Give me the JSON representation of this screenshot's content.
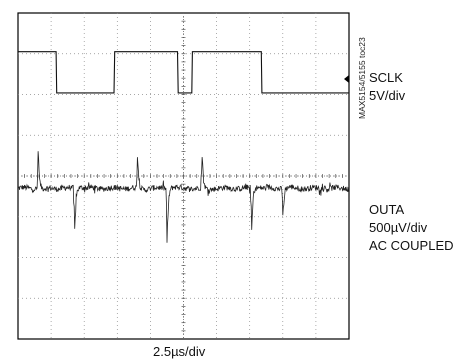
{
  "chart_data": {
    "type": "line",
    "title": "",
    "xlabel": "2.5µs/div",
    "ylabel": "",
    "grid": true,
    "divisions": {
      "x": 10,
      "y": 8
    },
    "x_unit": "div",
    "xlim": [
      0,
      10
    ],
    "series": [
      {
        "name": "SCLK",
        "scale": "5V/div",
        "y_unit": "div",
        "x": [
          0,
          0.07,
          1.15,
          1.17,
          2.9,
          2.92,
          4.82,
          4.84,
          5.25,
          5.27,
          7.35,
          7.37,
          8.0,
          8.02,
          10
        ],
        "y": [
          7.05,
          7.05,
          7.05,
          6.04,
          6.04,
          7.05,
          7.05,
          6.04,
          6.04,
          7.05,
          7.05,
          6.04,
          6.04,
          6.04,
          6.04
        ]
      },
      {
        "name": "OUTA",
        "scale": "500µV/div",
        "coupling": "AC COUPLED",
        "y_unit": "div",
        "baseline": 3.7,
        "spikes": [
          {
            "x": 0.6,
            "amplitude": 1.1
          },
          {
            "x": 1.7,
            "amplitude": -1.35
          },
          {
            "x": 3.6,
            "amplitude": 0.95
          },
          {
            "x": 4.5,
            "amplitude": -1.3
          },
          {
            "x": 5.55,
            "amplitude": 1.0
          },
          {
            "x": 7.05,
            "amplitude": -1.3
          },
          {
            "x": 8.0,
            "amplitude": -0.7
          }
        ]
      }
    ]
  },
  "labels": {
    "sclk_name": "SCLK",
    "sclk_scale": "5V/div",
    "outa_name": "OUTA",
    "outa_scale": "500µV/div",
    "outa_coupling": "AC COUPLED",
    "time_scale": "2.5µs/div",
    "figure_id": "MAX5154/5155 toc23"
  }
}
